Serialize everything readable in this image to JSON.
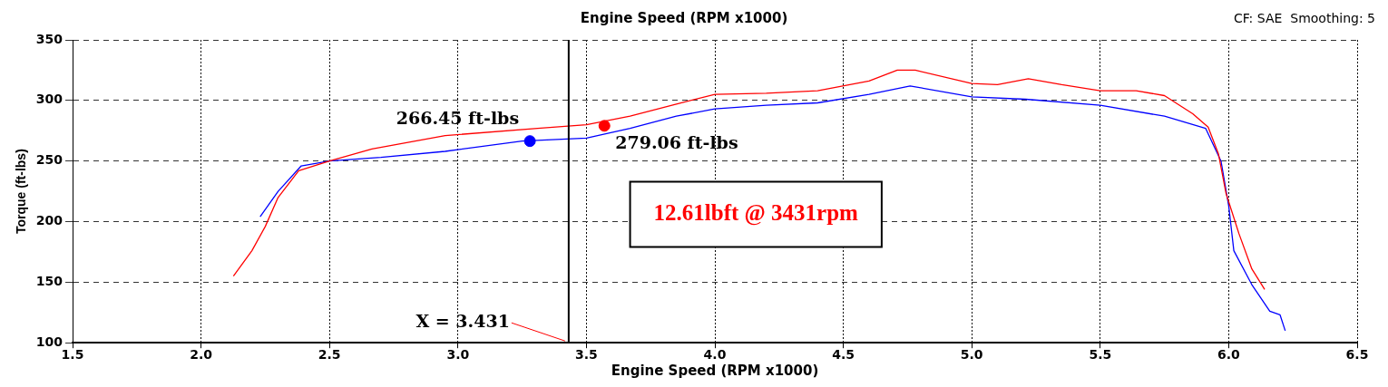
{
  "chart_data": {
    "type": "line",
    "title": "Engine Speed (RPM x1000)",
    "xlabel": "Engine Speed (RPM x1000)",
    "ylabel": "Torque (ft-lbs)",
    "xlim": [
      1.5,
      6.5
    ],
    "ylim": [
      100,
      350
    ],
    "xticks": [
      1.5,
      {
        "value": 2,
        "label": "2.0"
      },
      2.5,
      {
        "value": 3,
        "label": "3.0"
      },
      3.5,
      {
        "value": 4,
        "label": "4.0"
      },
      4.5,
      {
        "value": 5,
        "label": "5.0"
      },
      5.5,
      {
        "value": 6,
        "label": "6.0"
      },
      6.5
    ],
    "yticks": [
      100,
      150,
      200,
      250,
      300,
      350
    ],
    "grid": true,
    "legend": false,
    "series": [
      {
        "color": "#ff0000",
        "x": [
          2.126,
          2.198,
          2.25,
          2.3,
          2.38,
          2.5,
          2.665,
          2.95,
          3.31,
          3.5,
          3.67,
          3.85,
          4.0,
          4.2,
          4.4,
          4.6,
          4.71,
          4.78,
          5.0,
          5.1,
          5.22,
          5.35,
          5.5,
          5.64,
          5.75,
          5.86,
          5.92,
          5.96,
          5.99,
          6.04,
          6.09,
          6.14
        ],
        "values": [
          155,
          176,
          196,
          220,
          242,
          250,
          260,
          271,
          277,
          280,
          287,
          297,
          305,
          306,
          308,
          316,
          325,
          325,
          314,
          313,
          318,
          313,
          308,
          308,
          304,
          289,
          278,
          256,
          223,
          190,
          161,
          144
        ]
      },
      {
        "color": "#0000ff",
        "x": [
          2.23,
          2.3,
          2.39,
          2.5,
          2.7,
          2.95,
          3.25,
          3.5,
          3.67,
          3.85,
          4.0,
          4.2,
          4.4,
          4.6,
          4.76,
          5.0,
          5.21,
          5.5,
          5.75,
          5.91,
          5.97,
          6.0,
          6.02,
          6.09,
          6.16,
          6.2,
          6.22
        ],
        "values": [
          204,
          225,
          246,
          250,
          253,
          258,
          266.5,
          269,
          277,
          287,
          293,
          296,
          298,
          305,
          312,
          303,
          301,
          296,
          287,
          277,
          250,
          213,
          176,
          148,
          126,
          123,
          110
        ]
      },
      {
        "type": "scatter",
        "color": "#0000ff",
        "x": [
          3.28
        ],
        "values": [
          266.45
        ]
      },
      {
        "type": "scatter",
        "color": "#ff0000",
        "x": [
          3.57
        ],
        "values": [
          279.06
        ]
      }
    ],
    "ref_lines": [
      {
        "axis": "x",
        "value": 3.431,
        "label": "X = 3.431",
        "color": "#000000"
      }
    ],
    "annotations": [
      {
        "text": "266.45 ft-lbs",
        "x": 3.28,
        "y": 266.45
      },
      {
        "text": "279.06 ft-lbs",
        "x": 3.57,
        "y": 279.06
      },
      "12.61lbft @ 3431rpm",
      "CF: SAE  Smoothing: 5"
    ]
  }
}
